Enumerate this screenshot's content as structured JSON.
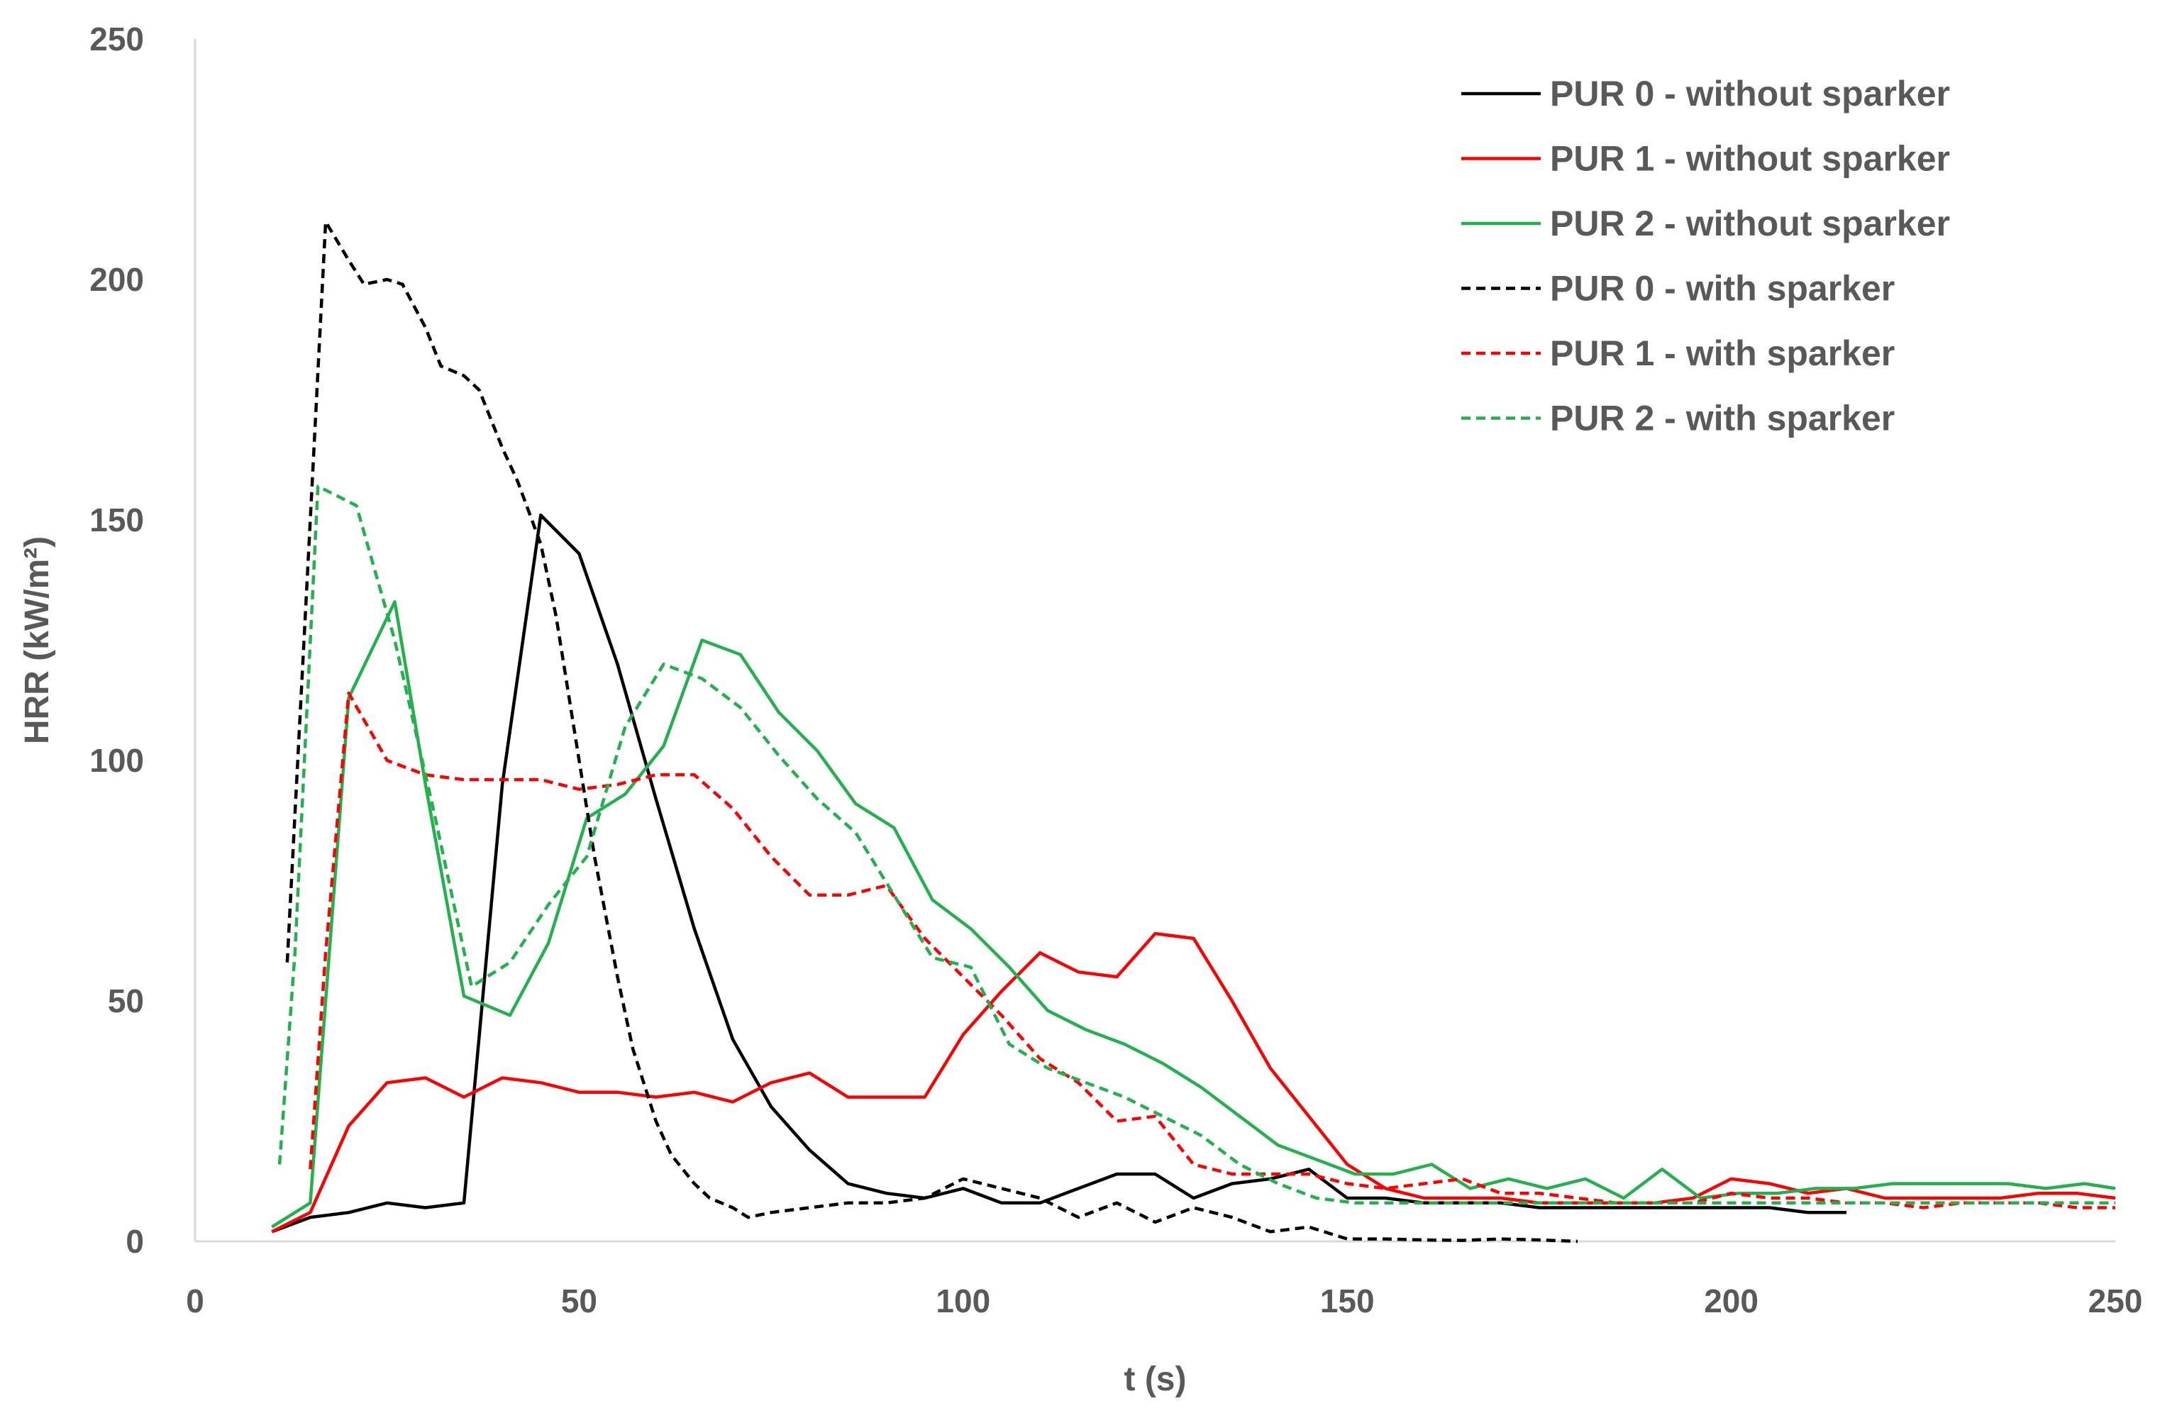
{
  "chart_data": {
    "type": "line",
    "title": "",
    "xlabel": "t (s)",
    "ylabel": "HRR (kW/m²)",
    "xlim": [
      0,
      250
    ],
    "ylim": [
      0,
      250
    ],
    "x_ticks": [
      "0",
      "50",
      "100",
      "150",
      "200",
      "250"
    ],
    "y_ticks": [
      "0",
      "50",
      "100",
      "150",
      "200",
      "250"
    ],
    "grid": false,
    "legend_position": "top-right",
    "series": [
      {
        "name": "PUR 0 - without sparker",
        "color": "#000000",
        "dash": false,
        "x": [
          10,
          15,
          20,
          25,
          30,
          35,
          40,
          45,
          50,
          55,
          60,
          65,
          70,
          75,
          80,
          85,
          90,
          95,
          100,
          105,
          110,
          115,
          120,
          125,
          130,
          135,
          140,
          145,
          150,
          155,
          160,
          165,
          170,
          175,
          180,
          185,
          190,
          195,
          200,
          205,
          210,
          215
        ],
        "y": [
          2,
          5,
          6,
          8,
          7,
          8,
          95,
          151,
          143,
          120,
          92,
          65,
          42,
          28,
          19,
          12,
          10,
          9,
          11,
          8,
          8,
          11,
          14,
          14,
          9,
          12,
          13,
          15,
          9,
          9,
          8,
          8,
          8,
          7,
          7,
          7,
          7,
          7,
          7,
          7,
          6,
          6
        ]
      },
      {
        "name": "PUR 1 - without sparker",
        "color": "#ff0000",
        "dash": false,
        "x": [
          10,
          15,
          20,
          25,
          30,
          35,
          40,
          45,
          50,
          55,
          60,
          65,
          70,
          75,
          80,
          85,
          90,
          95,
          100,
          105,
          110,
          115,
          120,
          125,
          130,
          135,
          140,
          145,
          150,
          155,
          160,
          165,
          170,
          175,
          180,
          185,
          190,
          195,
          200,
          205,
          210,
          215,
          220,
          225,
          230,
          235,
          240,
          245,
          250
        ],
        "y": [
          2,
          6,
          24,
          33,
          34,
          30,
          34,
          33,
          31,
          31,
          30,
          31,
          29,
          33,
          35,
          30,
          30,
          30,
          43,
          52,
          60,
          56,
          55,
          64,
          63,
          50,
          36,
          26,
          16,
          11,
          9,
          9,
          9,
          8,
          8,
          8,
          8,
          9,
          13,
          12,
          10,
          11,
          9,
          9,
          9,
          9,
          10,
          10,
          9
        ]
      },
      {
        "name": "PUR 2 - without sparker",
        "color": "#22b14c",
        "dash": false,
        "x": [
          10,
          15,
          20,
          26,
          30,
          35,
          41,
          46,
          51,
          56,
          61,
          66,
          71,
          76,
          81,
          86,
          91,
          96,
          101,
          106,
          111,
          116,
          121,
          126,
          131,
          136,
          141,
          146,
          151,
          156,
          161,
          166,
          171,
          176,
          181,
          186,
          191,
          196,
          201,
          206,
          211,
          216,
          221,
          226,
          231,
          236,
          241,
          246,
          250
        ],
        "y": [
          3,
          8,
          113,
          133,
          95,
          51,
          47,
          62,
          88,
          93,
          103,
          125,
          122,
          110,
          102,
          91,
          86,
          71,
          65,
          57,
          48,
          44,
          41,
          37,
          32,
          26,
          20,
          17,
          14,
          14,
          16,
          11,
          13,
          11,
          13,
          9,
          15,
          9,
          10,
          10,
          11,
          11,
          12,
          12,
          12,
          12,
          11,
          12,
          11
        ]
      },
      {
        "name": "PUR 0 - with sparker",
        "color": "#000000",
        "dash": true,
        "x": [
          12,
          15,
          17,
          20,
          22,
          25,
          27,
          30,
          32,
          35,
          37,
          40,
          42,
          45,
          47,
          50,
          52,
          55,
          57,
          60,
          62,
          65,
          67,
          70,
          72,
          75,
          80,
          85,
          90,
          95,
          100,
          105,
          110,
          115,
          120,
          125,
          130,
          135,
          140,
          145,
          150,
          155,
          160,
          165,
          170,
          175,
          180
        ],
        "y": [
          58,
          150,
          212,
          204,
          199,
          200,
          199,
          190,
          182,
          180,
          177,
          165,
          158,
          145,
          130,
          100,
          80,
          55,
          40,
          25,
          18,
          12,
          9,
          7,
          5,
          6,
          7,
          8,
          8,
          9,
          13,
          11,
          9,
          5,
          8,
          4,
          7,
          5,
          2,
          3,
          0.5,
          0.5,
          0.3,
          0.2,
          0.5,
          0.3,
          0
        ]
      },
      {
        "name": "PUR 1 - with sparker",
        "color": "#ff0000",
        "dash": true,
        "x": [
          15,
          17,
          20,
          25,
          30,
          35,
          40,
          45,
          50,
          55,
          60,
          65,
          70,
          75,
          80,
          85,
          90,
          95,
          100,
          105,
          110,
          115,
          120,
          125,
          130,
          135,
          140,
          145,
          150,
          155,
          160,
          165,
          170,
          175,
          180,
          185,
          190,
          195,
          200,
          205,
          210,
          215,
          220,
          225,
          230,
          235,
          240,
          245,
          250
        ],
        "y": [
          15,
          60,
          114,
          100,
          97,
          96,
          96,
          96,
          94,
          95,
          97,
          97,
          90,
          80,
          72,
          72,
          74,
          63,
          55,
          47,
          38,
          33,
          25,
          26,
          16,
          14,
          14,
          14,
          12,
          11,
          12,
          13,
          10,
          10,
          9,
          8,
          8,
          8,
          10,
          9,
          9,
          8,
          8,
          7,
          8,
          8,
          8,
          7,
          7
        ]
      },
      {
        "name": "PUR 2 - with sparker",
        "color": "#22b14c",
        "dash": true,
        "x": [
          11,
          13,
          16,
          21,
          26,
          31,
          36,
          41,
          46,
          51,
          56,
          61,
          66,
          71,
          76,
          81,
          86,
          91,
          96,
          101,
          106,
          111,
          116,
          121,
          126,
          131,
          136,
          141,
          146,
          151,
          156,
          161,
          166,
          171,
          176,
          181,
          186,
          191,
          196,
          201,
          206,
          211,
          216,
          221,
          226,
          231,
          236,
          241,
          246,
          250
        ],
        "y": [
          16,
          60,
          157,
          153,
          125,
          90,
          53,
          58,
          70,
          80,
          107,
          120,
          117,
          111,
          101,
          92,
          85,
          72,
          59,
          57,
          41,
          36,
          33,
          30,
          26,
          22,
          16,
          12,
          9,
          8,
          8,
          8,
          8,
          8,
          8,
          8,
          8,
          8,
          8,
          8,
          8,
          8,
          8,
          8,
          8,
          8,
          8,
          8,
          8,
          8
        ]
      }
    ]
  }
}
